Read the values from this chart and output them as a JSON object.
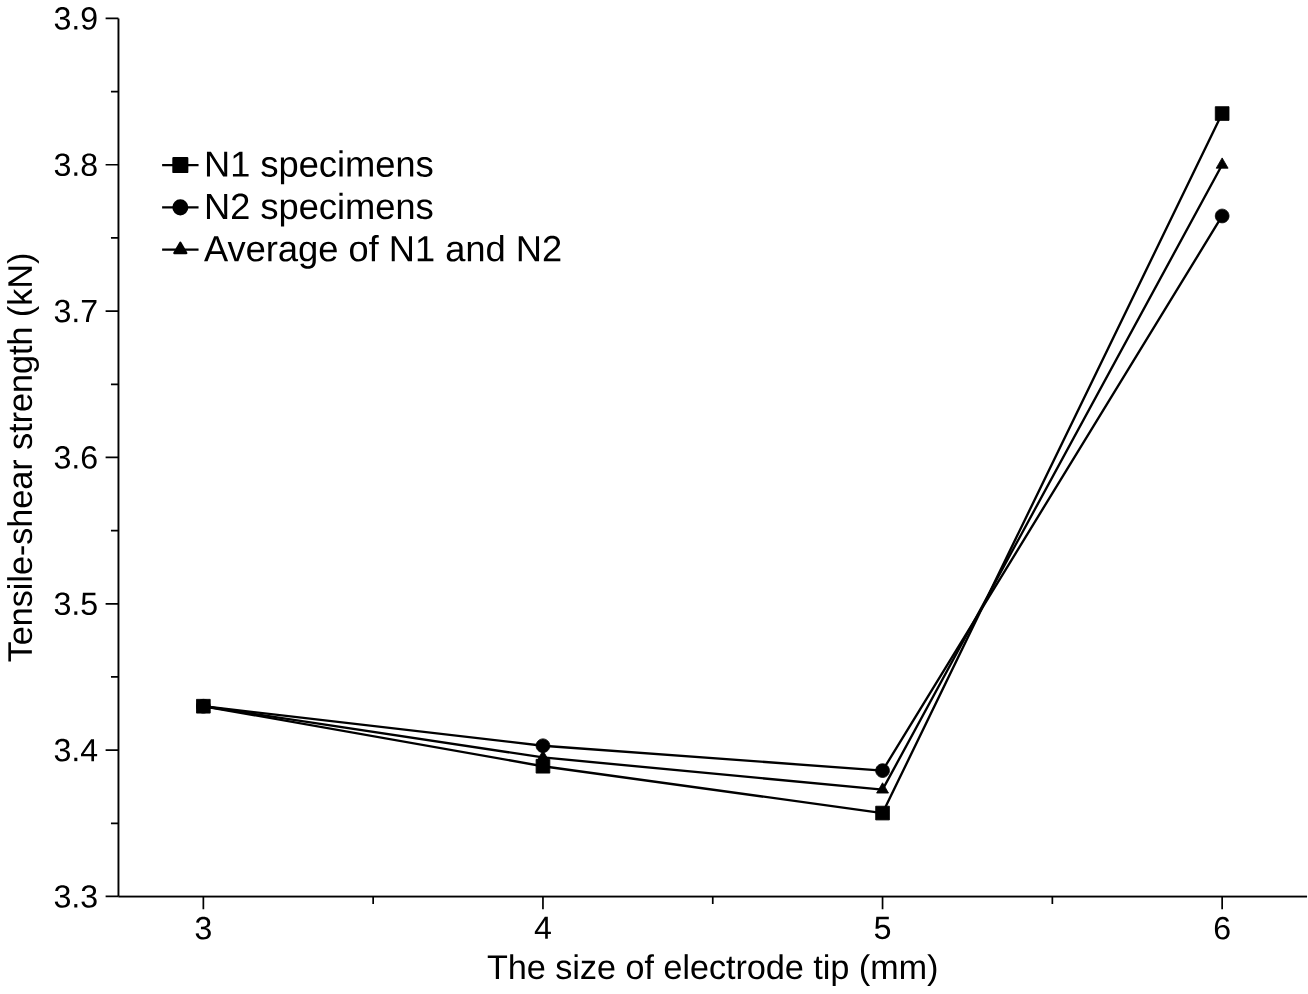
{
  "chart_data": {
    "type": "line",
    "xlabel": "The size of electrode tip (mm)",
    "ylabel": "Tensile-shear strength (kN)",
    "x": [
      3,
      4,
      5,
      6
    ],
    "series": [
      {
        "name": "N1 specimens",
        "color": "#000000",
        "marker": "square",
        "values": [
          3.43,
          3.389,
          3.357,
          3.835
        ]
      },
      {
        "name": "N2 specimens",
        "color": "#000000",
        "marker": "circle",
        "values": [
          3.43,
          3.403,
          3.386,
          3.765
        ]
      },
      {
        "name": "Average of N1 and N2",
        "color": "#000000",
        "marker": "triangle",
        "values": [
          3.43,
          3.395,
          3.373,
          3.8
        ]
      }
    ],
    "xlim": [
      2.75,
      6.25
    ],
    "xticks": [
      3,
      4,
      5,
      6
    ],
    "ylim": [
      3.3,
      3.9
    ],
    "yticks": [
      3.3,
      3.4,
      3.5,
      3.6,
      3.7,
      3.8,
      3.9
    ],
    "grid": false,
    "legend": "top left",
    "line_style": "solid"
  }
}
